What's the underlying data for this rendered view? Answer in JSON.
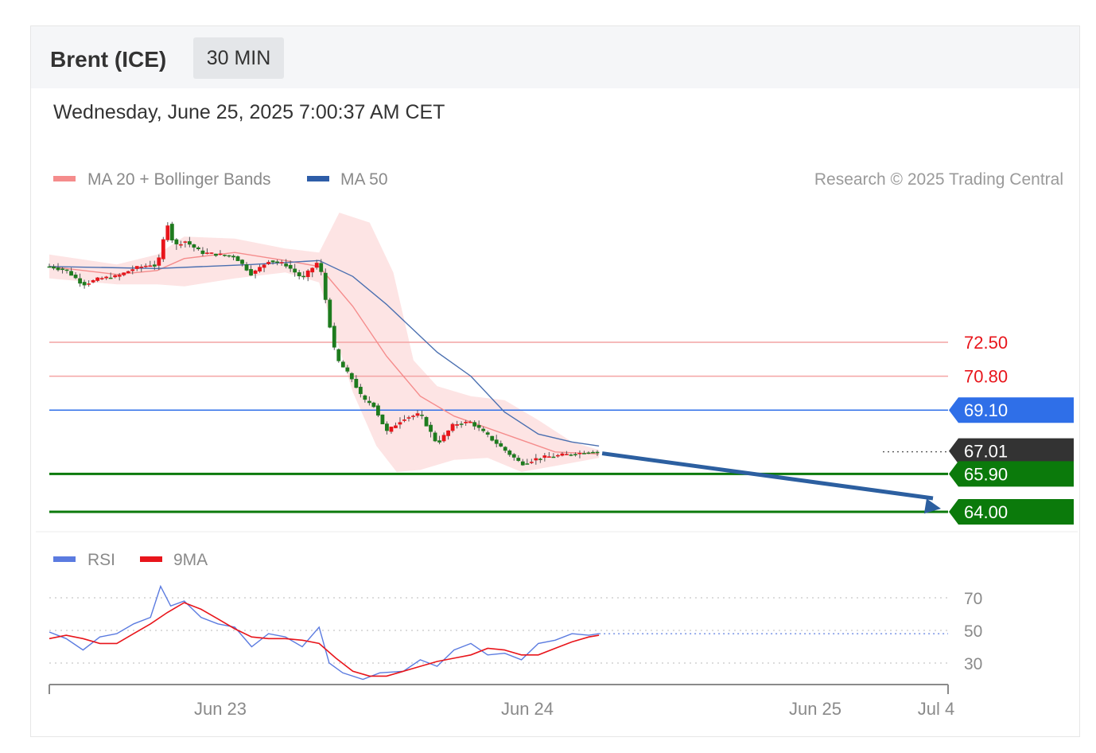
{
  "header": {
    "title": "Brent (ICE)",
    "interval": "30 MIN",
    "timestamp": "Wednesday, June 25, 2025 7:00:37 AM CET"
  },
  "legend_main": [
    {
      "label": "MA 20 + Bollinger Bands",
      "color": "#f58c8c"
    },
    {
      "label": "MA 50",
      "color": "#2e5da8"
    }
  ],
  "credit": "Research © 2025 Trading Central",
  "legend_rsi": [
    {
      "label": "RSI",
      "color": "#5b7be0"
    },
    {
      "label": "9MA",
      "color": "#e8151b"
    }
  ],
  "colors": {
    "up_candle": "#e8151b",
    "down_candle": "#1e7b1e",
    "resistance": "#f4a4a4",
    "pivot": "#2f6fe8",
    "support": "#0b7a0b",
    "last_price": "#333333",
    "arrow": "#2c5fa0",
    "band_fill": "#fde4e4"
  },
  "chart_data": [
    {
      "type": "line",
      "title": "Brent (ICE) 30 MIN",
      "x_ticks": [
        "Jun 23",
        "Jun 24",
        "Jun 25",
        "Jul 4"
      ],
      "ylim": [
        62.7,
        79.2
      ],
      "price_levels": [
        {
          "value": 72.5,
          "label": "72.50",
          "kind": "resistance"
        },
        {
          "value": 70.8,
          "label": "70.80",
          "kind": "resistance"
        },
        {
          "value": 69.1,
          "label": "69.10",
          "kind": "pivot"
        },
        {
          "value": 67.01,
          "label": "67.01",
          "kind": "last"
        },
        {
          "value": 65.9,
          "label": "65.90",
          "kind": "support"
        },
        {
          "value": 64.0,
          "label": "64.00",
          "kind": "support"
        }
      ],
      "close_path": [
        {
          "x": 0.0,
          "y": 76.3
        },
        {
          "x": 0.5,
          "y": 76.1
        },
        {
          "x": 1.0,
          "y": 75.4
        },
        {
          "x": 1.5,
          "y": 75.7
        },
        {
          "x": 2.0,
          "y": 75.8
        },
        {
          "x": 2.5,
          "y": 76.2
        },
        {
          "x": 3.0,
          "y": 76.4
        },
        {
          "x": 3.2,
          "y": 76.3
        },
        {
          "x": 3.5,
          "y": 78.5
        },
        {
          "x": 3.7,
          "y": 77.3
        },
        {
          "x": 4.0,
          "y": 77.6
        },
        {
          "x": 4.5,
          "y": 77.0
        },
        {
          "x": 5.0,
          "y": 76.9
        },
        {
          "x": 5.5,
          "y": 76.8
        },
        {
          "x": 6.0,
          "y": 75.9
        },
        {
          "x": 6.5,
          "y": 76.6
        },
        {
          "x": 7.0,
          "y": 76.4
        },
        {
          "x": 7.5,
          "y": 75.7
        },
        {
          "x": 8.0,
          "y": 76.6
        },
        {
          "x": 8.3,
          "y": 73.5
        },
        {
          "x": 8.5,
          "y": 71.7
        },
        {
          "x": 9.0,
          "y": 70.6
        },
        {
          "x": 9.3,
          "y": 69.6
        },
        {
          "x": 9.6,
          "y": 69.4
        },
        {
          "x": 10.0,
          "y": 68.0
        },
        {
          "x": 10.5,
          "y": 68.7
        },
        {
          "x": 11.0,
          "y": 68.9
        },
        {
          "x": 11.5,
          "y": 67.4
        },
        {
          "x": 12.0,
          "y": 68.4
        },
        {
          "x": 12.5,
          "y": 68.5
        },
        {
          "x": 13.0,
          "y": 67.8
        },
        {
          "x": 13.5,
          "y": 67.1
        },
        {
          "x": 14.0,
          "y": 66.4
        },
        {
          "x": 14.5,
          "y": 66.7
        },
        {
          "x": 15.0,
          "y": 66.8
        },
        {
          "x": 15.5,
          "y": 66.9
        },
        {
          "x": 16.0,
          "y": 67.0
        },
        {
          "x": 16.3,
          "y": 67.01
        }
      ],
      "ma20": [
        {
          "x": 0.0,
          "y": 76.3
        },
        {
          "x": 2.0,
          "y": 75.9
        },
        {
          "x": 3.2,
          "y": 76.1
        },
        {
          "x": 4.0,
          "y": 76.7
        },
        {
          "x": 5.5,
          "y": 77.0
        },
        {
          "x": 7.0,
          "y": 76.6
        },
        {
          "x": 8.0,
          "y": 76.3
        },
        {
          "x": 9.0,
          "y": 74.3
        },
        {
          "x": 10.0,
          "y": 71.8
        },
        {
          "x": 11.0,
          "y": 69.8
        },
        {
          "x": 12.0,
          "y": 68.8
        },
        {
          "x": 13.0,
          "y": 68.2
        },
        {
          "x": 14.0,
          "y": 67.6
        },
        {
          "x": 15.0,
          "y": 67.0
        },
        {
          "x": 16.3,
          "y": 66.9
        }
      ],
      "bb_upper": [
        {
          "x": 0.0,
          "y": 76.9
        },
        {
          "x": 2.0,
          "y": 76.4
        },
        {
          "x": 3.2,
          "y": 76.9
        },
        {
          "x": 4.0,
          "y": 77.8
        },
        {
          "x": 5.5,
          "y": 77.7
        },
        {
          "x": 7.0,
          "y": 77.2
        },
        {
          "x": 8.0,
          "y": 77.0
        },
        {
          "x": 8.6,
          "y": 79.0
        },
        {
          "x": 9.5,
          "y": 78.5
        },
        {
          "x": 10.2,
          "y": 76.0
        },
        {
          "x": 10.8,
          "y": 71.6
        },
        {
          "x": 11.5,
          "y": 70.3
        },
        {
          "x": 12.5,
          "y": 69.8
        },
        {
          "x": 13.5,
          "y": 69.6
        },
        {
          "x": 14.5,
          "y": 68.6
        },
        {
          "x": 15.5,
          "y": 67.5
        },
        {
          "x": 16.3,
          "y": 67.1
        }
      ],
      "bb_lower": [
        {
          "x": 0.0,
          "y": 75.7
        },
        {
          "x": 2.0,
          "y": 75.4
        },
        {
          "x": 3.2,
          "y": 75.4
        },
        {
          "x": 4.0,
          "y": 75.3
        },
        {
          "x": 5.5,
          "y": 75.7
        },
        {
          "x": 7.0,
          "y": 76.0
        },
        {
          "x": 8.0,
          "y": 75.5
        },
        {
          "x": 9.0,
          "y": 70.0
        },
        {
          "x": 9.7,
          "y": 67.3
        },
        {
          "x": 10.3,
          "y": 66.0
        },
        {
          "x": 11.0,
          "y": 66.1
        },
        {
          "x": 12.0,
          "y": 66.6
        },
        {
          "x": 13.0,
          "y": 66.7
        },
        {
          "x": 14.0,
          "y": 66.0
        },
        {
          "x": 15.0,
          "y": 66.3
        },
        {
          "x": 16.3,
          "y": 66.7
        }
      ],
      "ma50": [
        {
          "x": 0.0,
          "y": 76.3
        },
        {
          "x": 3.2,
          "y": 76.2
        },
        {
          "x": 6.0,
          "y": 76.4
        },
        {
          "x": 8.0,
          "y": 76.6
        },
        {
          "x": 9.0,
          "y": 75.8
        },
        {
          "x": 10.0,
          "y": 74.4
        },
        {
          "x": 11.5,
          "y": 72.0
        },
        {
          "x": 12.5,
          "y": 70.8
        },
        {
          "x": 13.5,
          "y": 69.0
        },
        {
          "x": 14.5,
          "y": 67.9
        },
        {
          "x": 15.5,
          "y": 67.5
        },
        {
          "x": 16.3,
          "y": 67.3
        }
      ],
      "forecast_arrow": {
        "from": {
          "x": 16.3,
          "y": 67.01
        },
        "to": {
          "x": 17.5,
          "y": 64.0
        }
      }
    },
    {
      "type": "line",
      "title": "RSI",
      "ylim": [
        15,
        85
      ],
      "y_ticks": [
        70,
        50,
        30
      ],
      "series": [
        {
          "name": "RSI",
          "values": [
            {
              "x": 0.0,
              "y": 49
            },
            {
              "x": 0.5,
              "y": 45
            },
            {
              "x": 1.0,
              "y": 38
            },
            {
              "x": 1.5,
              "y": 46
            },
            {
              "x": 2.0,
              "y": 48
            },
            {
              "x": 2.5,
              "y": 54
            },
            {
              "x": 3.0,
              "y": 58
            },
            {
              "x": 3.3,
              "y": 77
            },
            {
              "x": 3.6,
              "y": 65
            },
            {
              "x": 4.0,
              "y": 68
            },
            {
              "x": 4.5,
              "y": 58
            },
            {
              "x": 5.0,
              "y": 54
            },
            {
              "x": 5.5,
              "y": 52
            },
            {
              "x": 6.0,
              "y": 40
            },
            {
              "x": 6.5,
              "y": 48
            },
            {
              "x": 7.0,
              "y": 46
            },
            {
              "x": 7.5,
              "y": 40
            },
            {
              "x": 8.0,
              "y": 52
            },
            {
              "x": 8.3,
              "y": 30
            },
            {
              "x": 8.7,
              "y": 24
            },
            {
              "x": 9.3,
              "y": 20
            },
            {
              "x": 9.8,
              "y": 24
            },
            {
              "x": 10.5,
              "y": 25
            },
            {
              "x": 11.0,
              "y": 32
            },
            {
              "x": 11.5,
              "y": 28
            },
            {
              "x": 12.0,
              "y": 38
            },
            {
              "x": 12.5,
              "y": 42
            },
            {
              "x": 13.0,
              "y": 35
            },
            {
              "x": 13.5,
              "y": 36
            },
            {
              "x": 14.0,
              "y": 32
            },
            {
              "x": 14.5,
              "y": 42
            },
            {
              "x": 15.0,
              "y": 44
            },
            {
              "x": 15.5,
              "y": 48
            },
            {
              "x": 16.0,
              "y": 47
            },
            {
              "x": 16.3,
              "y": 48
            }
          ]
        },
        {
          "name": "9MA",
          "values": [
            {
              "x": 0.0,
              "y": 45
            },
            {
              "x": 0.5,
              "y": 47
            },
            {
              "x": 1.0,
              "y": 45
            },
            {
              "x": 1.5,
              "y": 42
            },
            {
              "x": 2.0,
              "y": 42
            },
            {
              "x": 2.5,
              "y": 48
            },
            {
              "x": 3.0,
              "y": 54
            },
            {
              "x": 3.5,
              "y": 61
            },
            {
              "x": 4.0,
              "y": 67
            },
            {
              "x": 4.5,
              "y": 63
            },
            {
              "x": 5.0,
              "y": 57
            },
            {
              "x": 5.5,
              "y": 51
            },
            {
              "x": 6.0,
              "y": 46
            },
            {
              "x": 6.5,
              "y": 45
            },
            {
              "x": 7.0,
              "y": 45
            },
            {
              "x": 7.5,
              "y": 44
            },
            {
              "x": 8.0,
              "y": 42
            },
            {
              "x": 8.5,
              "y": 33
            },
            {
              "x": 9.0,
              "y": 25
            },
            {
              "x": 9.5,
              "y": 22
            },
            {
              "x": 10.0,
              "y": 22
            },
            {
              "x": 10.5,
              "y": 25
            },
            {
              "x": 11.0,
              "y": 28
            },
            {
              "x": 11.5,
              "y": 31
            },
            {
              "x": 12.0,
              "y": 33
            },
            {
              "x": 12.5,
              "y": 35
            },
            {
              "x": 13.0,
              "y": 39
            },
            {
              "x": 13.5,
              "y": 38
            },
            {
              "x": 14.0,
              "y": 35
            },
            {
              "x": 14.5,
              "y": 35
            },
            {
              "x": 15.0,
              "y": 39
            },
            {
              "x": 15.5,
              "y": 43
            },
            {
              "x": 16.0,
              "y": 46
            },
            {
              "x": 16.3,
              "y": 47
            }
          ]
        }
      ]
    }
  ]
}
